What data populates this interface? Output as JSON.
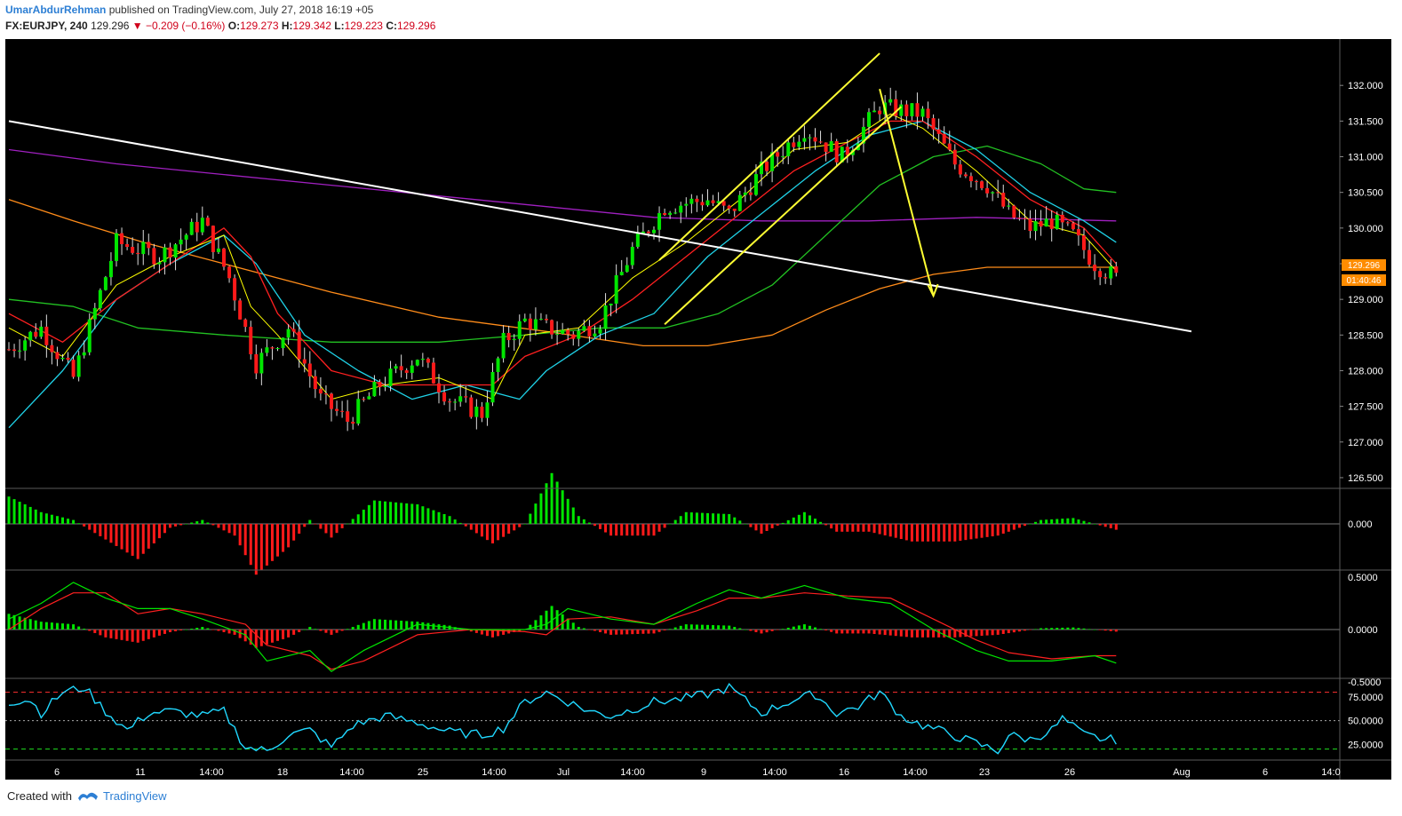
{
  "header": {
    "author": "UmarAbdurRehman",
    "published": "published on TradingView.com, July 27, 2018 16:19 +05",
    "symbol": "FX:EURJPY, 240",
    "last": "129.296",
    "change": "−0.209 (−0.16%)",
    "o_label": "O:",
    "o": "129.273",
    "h_label": "H:",
    "h": "129.342",
    "l_label": "L:",
    "l": "129.223",
    "c_label": "C:",
    "c": "129.296"
  },
  "footer": {
    "created_with": "Created with",
    "brand": "TradingView"
  },
  "price_badge": "129.296",
  "timer_badge": "01:40:46",
  "colors": {
    "background": "#000000",
    "up_candle": "#00e600",
    "down_candle": "#ff1a1a",
    "trendline": "#ffffff",
    "channel": "#ffff33",
    "ema_fast": "#ffff00",
    "ema_red": "#ff2020",
    "ema_cyan": "#1fd1e6",
    "ema_green": "#22c022",
    "ema_orange": "#ff8c1a",
    "ema_purple": "#a020c0",
    "rsi": "#20d8ff",
    "accent": "#ff8c00"
  },
  "chart_data": {
    "type": "candlestick",
    "symbol": "FX:EURJPY",
    "interval": "240",
    "price_axis": {
      "ticks": [
        "132.000",
        "131.500",
        "131.000",
        "130.500",
        "130.000",
        "129.500",
        "129.000",
        "128.500",
        "128.000",
        "127.500",
        "127.000",
        "126.500"
      ],
      "range": [
        126.35,
        132.6
      ]
    },
    "x_ticks": [
      "6",
      "11",
      "14:00",
      "18",
      "14:00",
      "25",
      "14:00",
      "Jul",
      "14:00",
      "9",
      "14:00",
      "16",
      "14:00",
      "23",
      "26",
      "Aug",
      "6",
      "14:0"
    ],
    "approx_close_path": [
      [
        0,
        128.3
      ],
      [
        6,
        128.6
      ],
      [
        12,
        127.9
      ],
      [
        20,
        129.8
      ],
      [
        28,
        129.6
      ],
      [
        36,
        130.1
      ],
      [
        41,
        129.3
      ],
      [
        46,
        128.1
      ],
      [
        52,
        128.6
      ],
      [
        58,
        127.6
      ],
      [
        63,
        127.3
      ],
      [
        69,
        127.8
      ],
      [
        76,
        128.2
      ],
      [
        82,
        127.6
      ],
      [
        88,
        127.4
      ],
      [
        92,
        128.4
      ],
      [
        96,
        128.7
      ],
      [
        100,
        128.6
      ],
      [
        105,
        128.5
      ],
      [
        110,
        128.7
      ],
      [
        116,
        129.7
      ],
      [
        122,
        130.3
      ],
      [
        130,
        130.4
      ],
      [
        134,
        130.2
      ],
      [
        140,
        130.8
      ],
      [
        148,
        131.4
      ],
      [
        155,
        131.0
      ],
      [
        162,
        131.7
      ],
      [
        170,
        131.6
      ],
      [
        176,
        130.9
      ],
      [
        182,
        130.6
      ],
      [
        186,
        130.2
      ],
      [
        190,
        130.0
      ],
      [
        194,
        130.1
      ],
      [
        198,
        129.9
      ],
      [
        202,
        129.5
      ],
      [
        206,
        129.3
      ]
    ],
    "trendline": {
      "from": [
        0,
        131.5
      ],
      "to": [
        220,
        128.55
      ]
    },
    "channel_upper": {
      "from": [
        121,
        129.55
      ],
      "to": [
        162,
        132.45
      ]
    },
    "channel_lower": {
      "from": [
        122,
        128.65
      ],
      "to": [
        166,
        131.7
      ]
    },
    "projection_arrow": {
      "from": [
        162,
        131.95
      ],
      "to": [
        172,
        129.05
      ]
    },
    "ema_fast": [
      [
        0,
        128.6
      ],
      [
        10,
        128.2
      ],
      [
        20,
        129.2
      ],
      [
        30,
        129.6
      ],
      [
        40,
        129.9
      ],
      [
        45,
        128.9
      ],
      [
        50,
        128.5
      ],
      [
        60,
        127.6
      ],
      [
        70,
        127.8
      ],
      [
        80,
        127.9
      ],
      [
        90,
        127.6
      ],
      [
        96,
        128.5
      ],
      [
        106,
        128.6
      ],
      [
        116,
        129.3
      ],
      [
        126,
        129.8
      ],
      [
        136,
        130.4
      ],
      [
        146,
        131.1
      ],
      [
        156,
        131.2
      ],
      [
        164,
        131.6
      ],
      [
        170,
        131.4
      ],
      [
        180,
        130.8
      ],
      [
        190,
        130.1
      ],
      [
        200,
        129.9
      ],
      [
        206,
        129.4
      ]
    ],
    "ema_red": [
      [
        0,
        128.8
      ],
      [
        10,
        128.4
      ],
      [
        20,
        129.0
      ],
      [
        30,
        129.5
      ],
      [
        40,
        130.0
      ],
      [
        45,
        129.6
      ],
      [
        50,
        128.8
      ],
      [
        60,
        128.0
      ],
      [
        70,
        127.8
      ],
      [
        80,
        127.8
      ],
      [
        90,
        127.8
      ],
      [
        96,
        128.2
      ],
      [
        106,
        128.5
      ],
      [
        116,
        129.0
      ],
      [
        126,
        129.6
      ],
      [
        136,
        130.2
      ],
      [
        146,
        130.8
      ],
      [
        156,
        131.2
      ],
      [
        164,
        131.5
      ],
      [
        170,
        131.5
      ],
      [
        180,
        131.0
      ],
      [
        190,
        130.4
      ],
      [
        200,
        130.0
      ],
      [
        206,
        129.5
      ]
    ],
    "ema_cyan": [
      [
        0,
        127.2
      ],
      [
        10,
        128.0
      ],
      [
        20,
        129.0
      ],
      [
        30,
        129.5
      ],
      [
        40,
        129.9
      ],
      [
        46,
        129.5
      ],
      [
        55,
        128.5
      ],
      [
        65,
        128.0
      ],
      [
        75,
        127.6
      ],
      [
        85,
        127.8
      ],
      [
        95,
        127.6
      ],
      [
        100,
        128.0
      ],
      [
        110,
        128.5
      ],
      [
        120,
        128.8
      ],
      [
        130,
        129.6
      ],
      [
        140,
        130.2
      ],
      [
        150,
        130.8
      ],
      [
        160,
        131.3
      ],
      [
        170,
        131.5
      ],
      [
        180,
        131.1
      ],
      [
        190,
        130.5
      ],
      [
        200,
        130.1
      ],
      [
        206,
        129.8
      ]
    ],
    "ema_green": [
      [
        0,
        129.0
      ],
      [
        12,
        128.9
      ],
      [
        24,
        128.6
      ],
      [
        40,
        128.5
      ],
      [
        60,
        128.4
      ],
      [
        80,
        128.4
      ],
      [
        96,
        128.5
      ],
      [
        110,
        128.6
      ],
      [
        122,
        128.6
      ],
      [
        132,
        128.8
      ],
      [
        142,
        129.2
      ],
      [
        152,
        129.9
      ],
      [
        162,
        130.6
      ],
      [
        172,
        131.0
      ],
      [
        182,
        131.15
      ],
      [
        192,
        130.9
      ],
      [
        200,
        130.55
      ],
      [
        206,
        130.5
      ]
    ],
    "ema_orange": [
      [
        0,
        130.4
      ],
      [
        12,
        130.1
      ],
      [
        25,
        129.8
      ],
      [
        40,
        129.5
      ],
      [
        60,
        129.1
      ],
      [
        80,
        128.75
      ],
      [
        100,
        128.55
      ],
      [
        118,
        128.35
      ],
      [
        130,
        128.35
      ],
      [
        142,
        128.5
      ],
      [
        152,
        128.85
      ],
      [
        162,
        129.15
      ],
      [
        172,
        129.35
      ],
      [
        182,
        129.45
      ],
      [
        194,
        129.45
      ],
      [
        206,
        129.45
      ]
    ],
    "ema_purple": [
      [
        0,
        131.1
      ],
      [
        20,
        130.9
      ],
      [
        40,
        130.75
      ],
      [
        60,
        130.6
      ],
      [
        80,
        130.45
      ],
      [
        100,
        130.3
      ],
      [
        120,
        130.15
      ],
      [
        140,
        130.1
      ],
      [
        160,
        130.1
      ],
      [
        180,
        130.15
      ],
      [
        206,
        130.1
      ]
    ],
    "macd_hist": [
      [
        0,
        0.7
      ],
      [
        6,
        0.3
      ],
      [
        12,
        0.1
      ],
      [
        18,
        -0.4
      ],
      [
        24,
        -0.9
      ],
      [
        30,
        -0.1
      ],
      [
        36,
        0.1
      ],
      [
        42,
        -0.3
      ],
      [
        46,
        -1.3
      ],
      [
        52,
        -0.6
      ],
      [
        56,
        0.1
      ],
      [
        60,
        -0.35
      ],
      [
        68,
        0.6
      ],
      [
        76,
        0.5
      ],
      [
        82,
        0.2
      ],
      [
        90,
        -0.5
      ],
      [
        96,
        0.0
      ],
      [
        101,
        1.3
      ],
      [
        106,
        0.2
      ],
      [
        112,
        -0.3
      ],
      [
        120,
        -0.3
      ],
      [
        126,
        0.3
      ],
      [
        134,
        0.25
      ],
      [
        140,
        -0.25
      ],
      [
        148,
        0.3
      ],
      [
        154,
        -0.2
      ],
      [
        160,
        -0.2
      ],
      [
        168,
        -0.45
      ],
      [
        176,
        -0.45
      ],
      [
        184,
        -0.3
      ],
      [
        192,
        0.1
      ],
      [
        198,
        0.15
      ],
      [
        206,
        -0.15
      ]
    ],
    "macd_axis": [
      "0.000"
    ],
    "osc_axis": [
      "0.5000",
      "0.0000",
      "-0.5000"
    ],
    "osc_hist": [
      [
        0,
        0.6
      ],
      [
        6,
        0.3
      ],
      [
        12,
        0.2
      ],
      [
        18,
        -0.3
      ],
      [
        24,
        -0.5
      ],
      [
        30,
        -0.1
      ],
      [
        36,
        0.1
      ],
      [
        42,
        -0.2
      ],
      [
        46,
        -0.7
      ],
      [
        52,
        -0.3
      ],
      [
        56,
        0.1
      ],
      [
        60,
        -0.2
      ],
      [
        68,
        0.4
      ],
      [
        76,
        0.3
      ],
      [
        82,
        0.15
      ],
      [
        90,
        -0.3
      ],
      [
        96,
        0.0
      ],
      [
        101,
        0.9
      ],
      [
        106,
        0.1
      ],
      [
        112,
        -0.2
      ],
      [
        120,
        -0.15
      ],
      [
        126,
        0.2
      ],
      [
        134,
        0.15
      ],
      [
        140,
        -0.15
      ],
      [
        148,
        0.2
      ],
      [
        154,
        -0.15
      ],
      [
        160,
        -0.15
      ],
      [
        168,
        -0.3
      ],
      [
        176,
        -0.3
      ],
      [
        184,
        -0.2
      ],
      [
        192,
        0.05
      ],
      [
        198,
        0.08
      ],
      [
        206,
        -0.08
      ]
    ],
    "osc_green": [
      [
        0,
        0.1
      ],
      [
        6,
        0.25
      ],
      [
        12,
        0.45
      ],
      [
        18,
        0.3
      ],
      [
        24,
        0.2
      ],
      [
        30,
        0.2
      ],
      [
        36,
        0.1
      ],
      [
        44,
        -0.05
      ],
      [
        48,
        -0.3
      ],
      [
        56,
        -0.2
      ],
      [
        60,
        -0.4
      ],
      [
        66,
        -0.2
      ],
      [
        76,
        0.05
      ],
      [
        86,
        0.0
      ],
      [
        96,
        0.0
      ],
      [
        100,
        0.05
      ],
      [
        104,
        0.2
      ],
      [
        112,
        0.1
      ],
      [
        120,
        0.05
      ],
      [
        128,
        0.25
      ],
      [
        134,
        0.38
      ],
      [
        140,
        0.3
      ],
      [
        148,
        0.42
      ],
      [
        156,
        0.3
      ],
      [
        164,
        0.25
      ],
      [
        172,
        0.0
      ],
      [
        180,
        -0.2
      ],
      [
        186,
        -0.3
      ],
      [
        194,
        -0.3
      ],
      [
        202,
        -0.25
      ],
      [
        206,
        -0.32
      ]
    ],
    "osc_red": [
      [
        0,
        0.0
      ],
      [
        6,
        0.2
      ],
      [
        12,
        0.35
      ],
      [
        18,
        0.35
      ],
      [
        24,
        0.15
      ],
      [
        30,
        0.2
      ],
      [
        36,
        0.15
      ],
      [
        44,
        0.05
      ],
      [
        48,
        -0.15
      ],
      [
        56,
        -0.25
      ],
      [
        60,
        -0.38
      ],
      [
        66,
        -0.3
      ],
      [
        76,
        -0.05
      ],
      [
        86,
        -0.0
      ],
      [
        96,
        -0.02
      ],
      [
        100,
        -0.05
      ],
      [
        104,
        0.1
      ],
      [
        112,
        0.12
      ],
      [
        120,
        0.05
      ],
      [
        128,
        0.18
      ],
      [
        134,
        0.3
      ],
      [
        140,
        0.3
      ],
      [
        148,
        0.35
      ],
      [
        156,
        0.32
      ],
      [
        164,
        0.3
      ],
      [
        172,
        0.1
      ],
      [
        180,
        -0.1
      ],
      [
        186,
        -0.22
      ],
      [
        194,
        -0.28
      ],
      [
        202,
        -0.25
      ],
      [
        206,
        -0.25
      ]
    ],
    "rsi_axis": [
      "75.0000",
      "50.0000",
      "25.0000"
    ],
    "rsi_levels": {
      "upper": 80,
      "mid": 50,
      "lower": 20
    },
    "rsi": [
      [
        0,
        70
      ],
      [
        4,
        72
      ],
      [
        6,
        58
      ],
      [
        10,
        80
      ],
      [
        14,
        85
      ],
      [
        18,
        60
      ],
      [
        22,
        40
      ],
      [
        26,
        58
      ],
      [
        30,
        60
      ],
      [
        36,
        55
      ],
      [
        40,
        60
      ],
      [
        44,
        22
      ],
      [
        48,
        18
      ],
      [
        52,
        35
      ],
      [
        56,
        40
      ],
      [
        60,
        22
      ],
      [
        64,
        45
      ],
      [
        70,
        55
      ],
      [
        76,
        48
      ],
      [
        82,
        38
      ],
      [
        88,
        35
      ],
      [
        92,
        42
      ],
      [
        96,
        70
      ],
      [
        100,
        80
      ],
      [
        104,
        70
      ],
      [
        108,
        60
      ],
      [
        112,
        55
      ],
      [
        116,
        62
      ],
      [
        120,
        70
      ],
      [
        124,
        72
      ],
      [
        130,
        78
      ],
      [
        134,
        85
      ],
      [
        140,
        58
      ],
      [
        146,
        72
      ],
      [
        150,
        78
      ],
      [
        154,
        58
      ],
      [
        158,
        65
      ],
      [
        162,
        80
      ],
      [
        166,
        55
      ],
      [
        170,
        45
      ],
      [
        174,
        38
      ],
      [
        178,
        30
      ],
      [
        182,
        22
      ],
      [
        184,
        18
      ],
      [
        186,
        35
      ],
      [
        190,
        30
      ],
      [
        194,
        40
      ],
      [
        196,
        52
      ],
      [
        200,
        35
      ],
      [
        204,
        30
      ],
      [
        206,
        30
      ]
    ]
  }
}
